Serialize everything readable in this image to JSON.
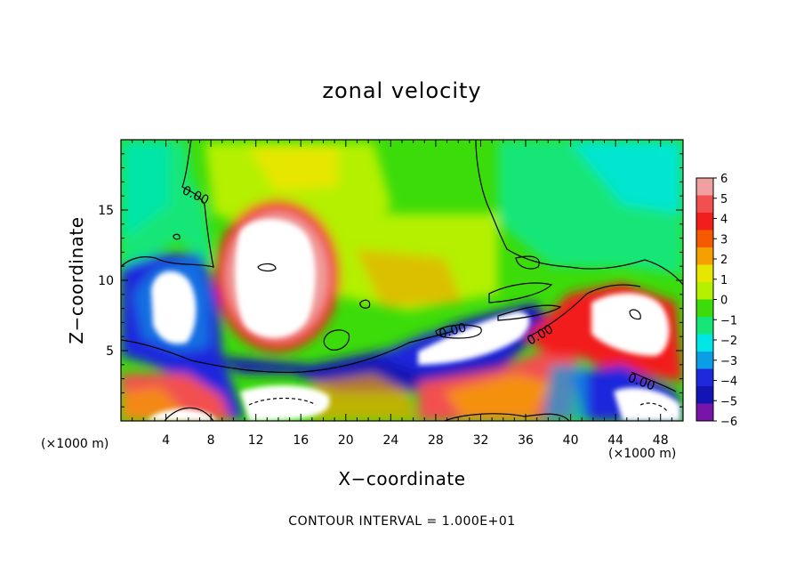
{
  "chart_data": {
    "type": "heatmap",
    "title": "zonal velocity",
    "xlabel": "X−coordinate",
    "ylabel": "Z−coordinate",
    "x_unit_left": "(×1000 m)",
    "x_unit_right": "(×1000 m)",
    "xlim": [
      0,
      50
    ],
    "ylim": [
      0,
      20
    ],
    "x_ticks": [
      4,
      8,
      12,
      16,
      20,
      24,
      28,
      32,
      36,
      40,
      44,
      48
    ],
    "y_ticks": [
      5,
      10,
      15
    ],
    "colorbar": {
      "min": -6,
      "max": 6,
      "labels": [
        "6",
        "5",
        "4",
        "3",
        "2",
        "1",
        "0",
        "−1",
        "−2",
        "−3",
        "−4",
        "−5",
        "−6"
      ],
      "colors": [
        "#f0a0a0",
        "#f25050",
        "#f21e1e",
        "#f55a00",
        "#f5a000",
        "#e6e600",
        "#b4f000",
        "#3cdc0a",
        "#14e678",
        "#00e6e6",
        "#0a9ee6",
        "#1e28dc",
        "#1414b4",
        "#7814aa"
      ]
    },
    "contour_labels": [
      "0.00",
      "0.00",
      "0.00",
      "0.00"
    ],
    "footnote": "CONTOUR INTERVAL = 1.000E+01"
  }
}
